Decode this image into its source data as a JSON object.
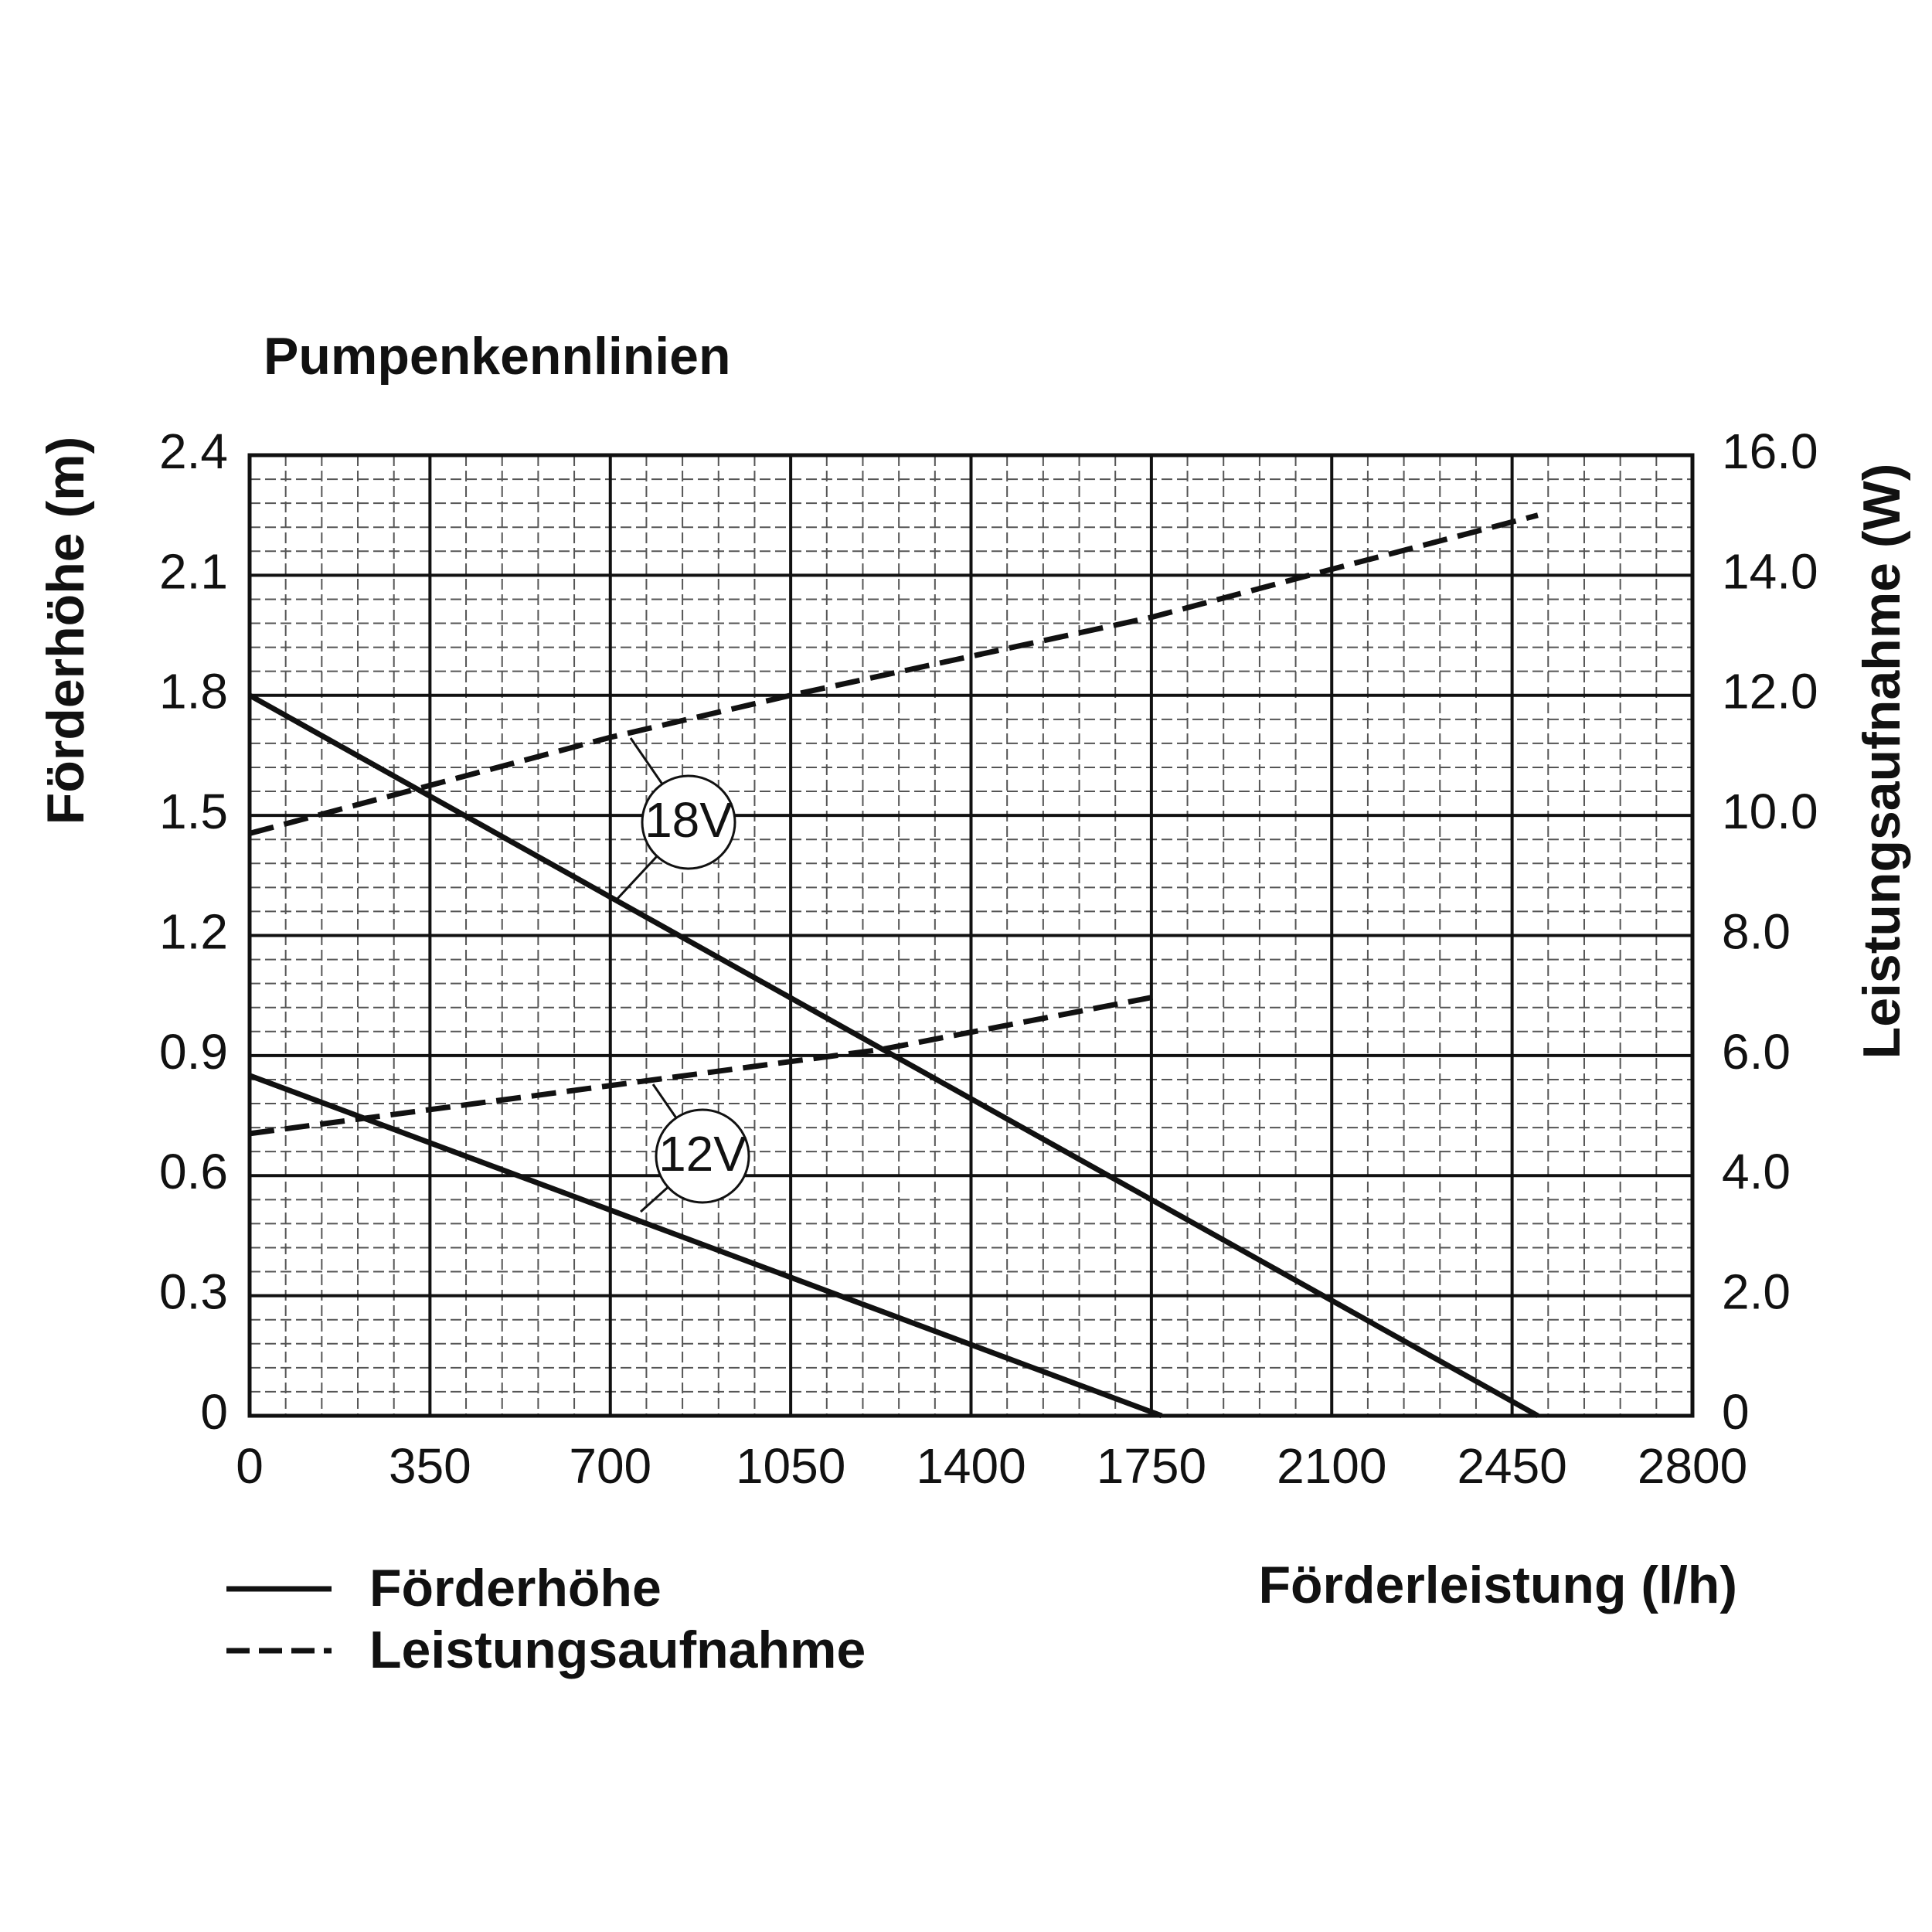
{
  "chart_data": {
    "type": "line",
    "title": "Pumpenkennlinien",
    "xlabel": "Förderleistung (l/h)",
    "ylabel": "Förderhöhe (m)",
    "y2label": "Leistungsaufnahme (W)",
    "xlim": [
      0,
      2800
    ],
    "xticks": [
      0,
      350,
      700,
      1050,
      1400,
      1750,
      2100,
      2450,
      2800
    ],
    "ylim": [
      0,
      2.4
    ],
    "yticks": [
      0,
      0.3,
      0.6,
      0.9,
      1.2,
      1.5,
      1.8,
      2.1,
      2.4
    ],
    "y2lim": [
      0,
      16
    ],
    "y2ticks": [
      {
        "value": 0,
        "label": "0"
      },
      {
        "value": 2,
        "label": "2.0"
      },
      {
        "value": 4,
        "label": "4.0"
      },
      {
        "value": 6,
        "label": "6.0"
      },
      {
        "value": 8,
        "label": "8.0"
      },
      {
        "value": 10,
        "label": "10.0"
      },
      {
        "value": 12,
        "label": "12.0"
      },
      {
        "value": 14,
        "label": "14.0"
      },
      {
        "value": 16,
        "label": "16.0"
      }
    ],
    "grid": true,
    "minor_grid": true,
    "series": [
      {
        "name": "Förderhöhe",
        "voltage": "18V",
        "color": "#111111",
        "dashed": false,
        "x": [
          0,
          700,
          2100,
          2500
        ],
        "values": [
          1.8,
          1.296,
          0.288,
          0
        ]
      },
      {
        "name": "Leistungsaufnahme",
        "voltage": "18V",
        "color": "#111111",
        "dashed": true,
        "axis": "y2",
        "x": [
          0,
          700,
          1050,
          1750,
          2100,
          2500
        ],
        "values": [
          9.7,
          11.3,
          12.0,
          13.3,
          14.1,
          15.0
        ]
      },
      {
        "name": "Förderhöhe",
        "voltage": "12V",
        "color": "#111111",
        "dashed": false,
        "x": [
          0,
          700,
          1770
        ],
        "values": [
          0.85,
          0.514,
          0
        ]
      },
      {
        "name": "Leistungsaufnahme",
        "voltage": "12V",
        "color": "#111111",
        "dashed": true,
        "axis": "y2",
        "x": [
          0,
          700,
          1225,
          1770
        ],
        "values": [
          4.7,
          5.5,
          6.1,
          7.0
        ]
      }
    ]
  }
}
